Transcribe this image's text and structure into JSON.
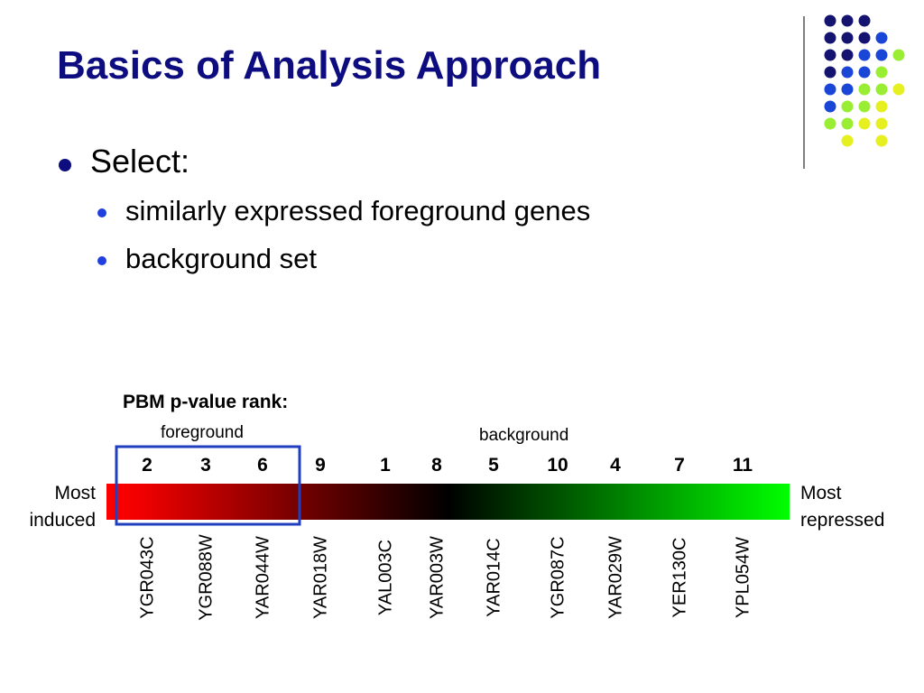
{
  "header": {
    "title": "Basics of Analysis Approach"
  },
  "bullets": [
    {
      "text": "Select:",
      "subs": [
        "similarly expressed foreground genes",
        "background set"
      ]
    }
  ],
  "figure": {
    "caption": "PBM p-value rank:",
    "foreground_label": "foreground",
    "background_label": "background",
    "ranks": [
      2,
      3,
      6,
      9,
      1,
      8,
      5,
      10,
      4,
      7,
      11
    ],
    "genes": [
      "YGR043C",
      "YGR088W",
      "YAR044W",
      "YAR018W",
      "YAL003C",
      "YAR003W",
      "YAR014C",
      "YGR087C",
      "YAR029W",
      "YER130C",
      "YPL054W"
    ],
    "left_label": "Most induced",
    "right_label": "Most repressed"
  }
}
